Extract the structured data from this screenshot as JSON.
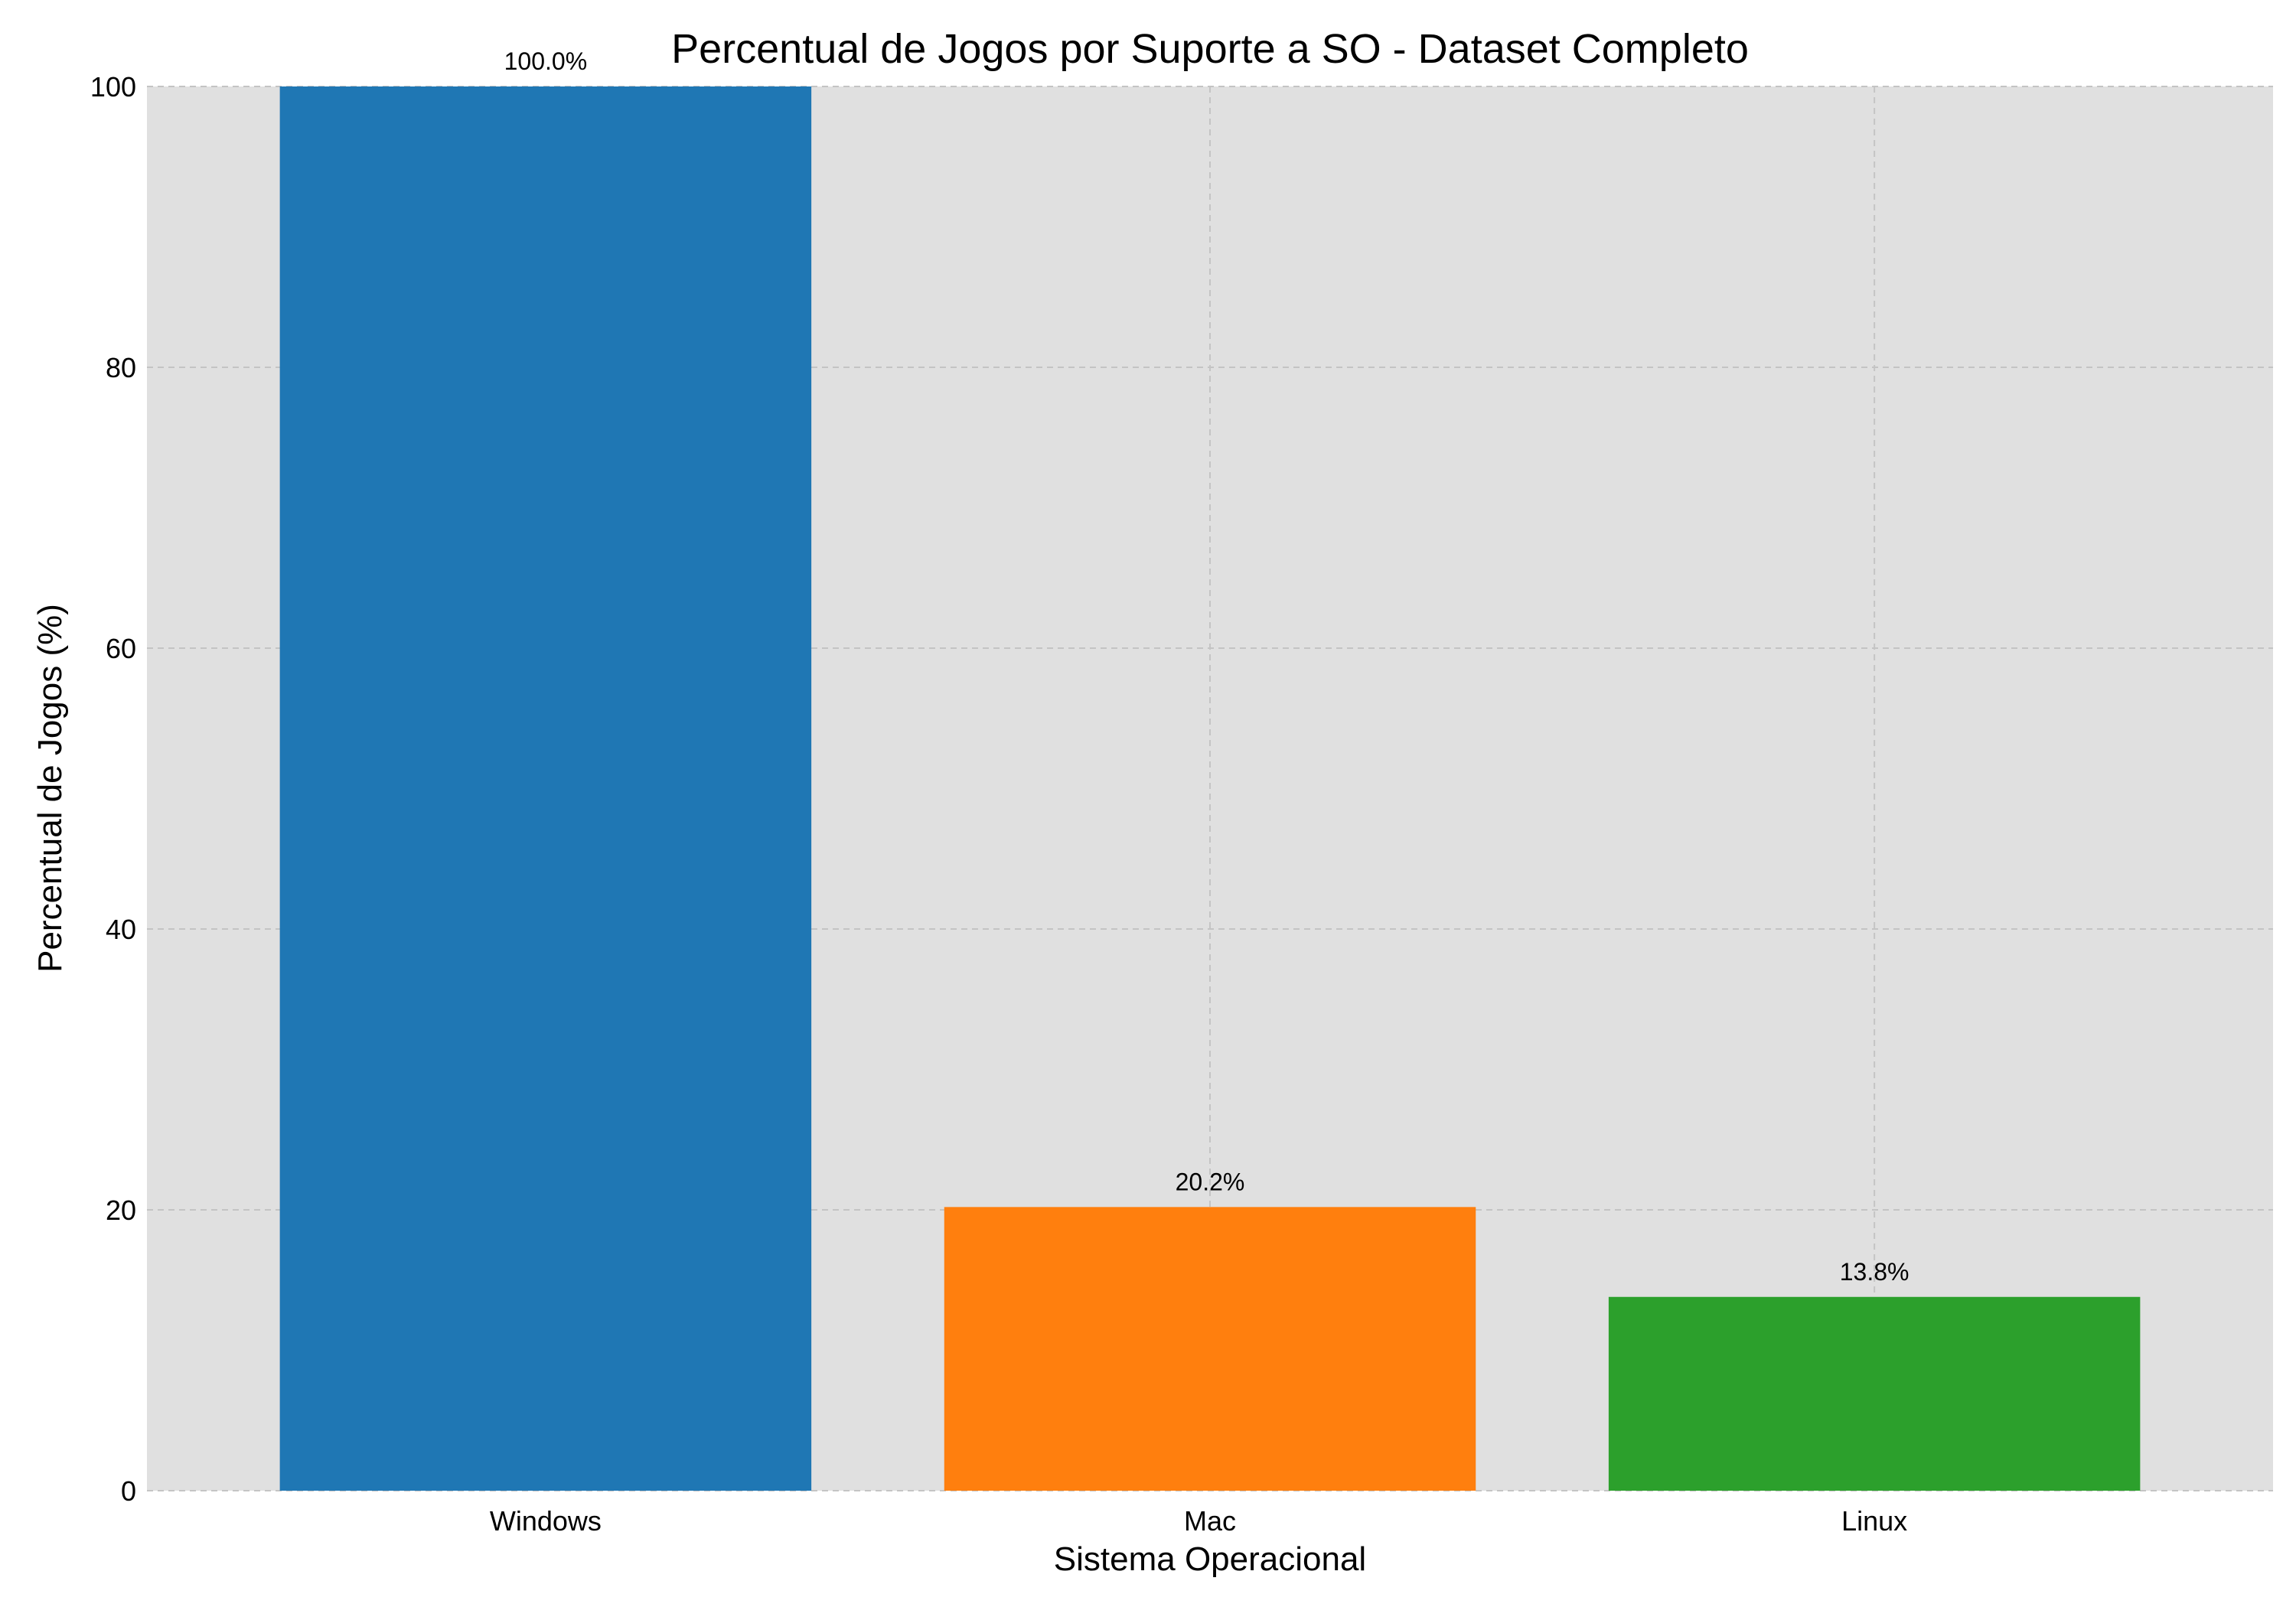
{
  "chart_data": {
    "type": "bar",
    "title": "Percentual de Jogos por Suporte a SO - Dataset Completo",
    "xlabel": "Sistema Operacional",
    "ylabel": "Percentual de Jogos (%)",
    "categories": [
      "Windows",
      "Mac",
      "Linux"
    ],
    "values": [
      100.0,
      20.2,
      13.8
    ],
    "data_labels": [
      "100.0%",
      "20.2%",
      "13.8%"
    ],
    "colors": [
      "#1f77b4",
      "#ff7f0e",
      "#2ca02c"
    ],
    "ylim": [
      0,
      100
    ],
    "yticks": [
      0,
      20,
      40,
      60,
      80,
      100
    ],
    "grid": true,
    "plot_background": "#e0e0e0"
  }
}
